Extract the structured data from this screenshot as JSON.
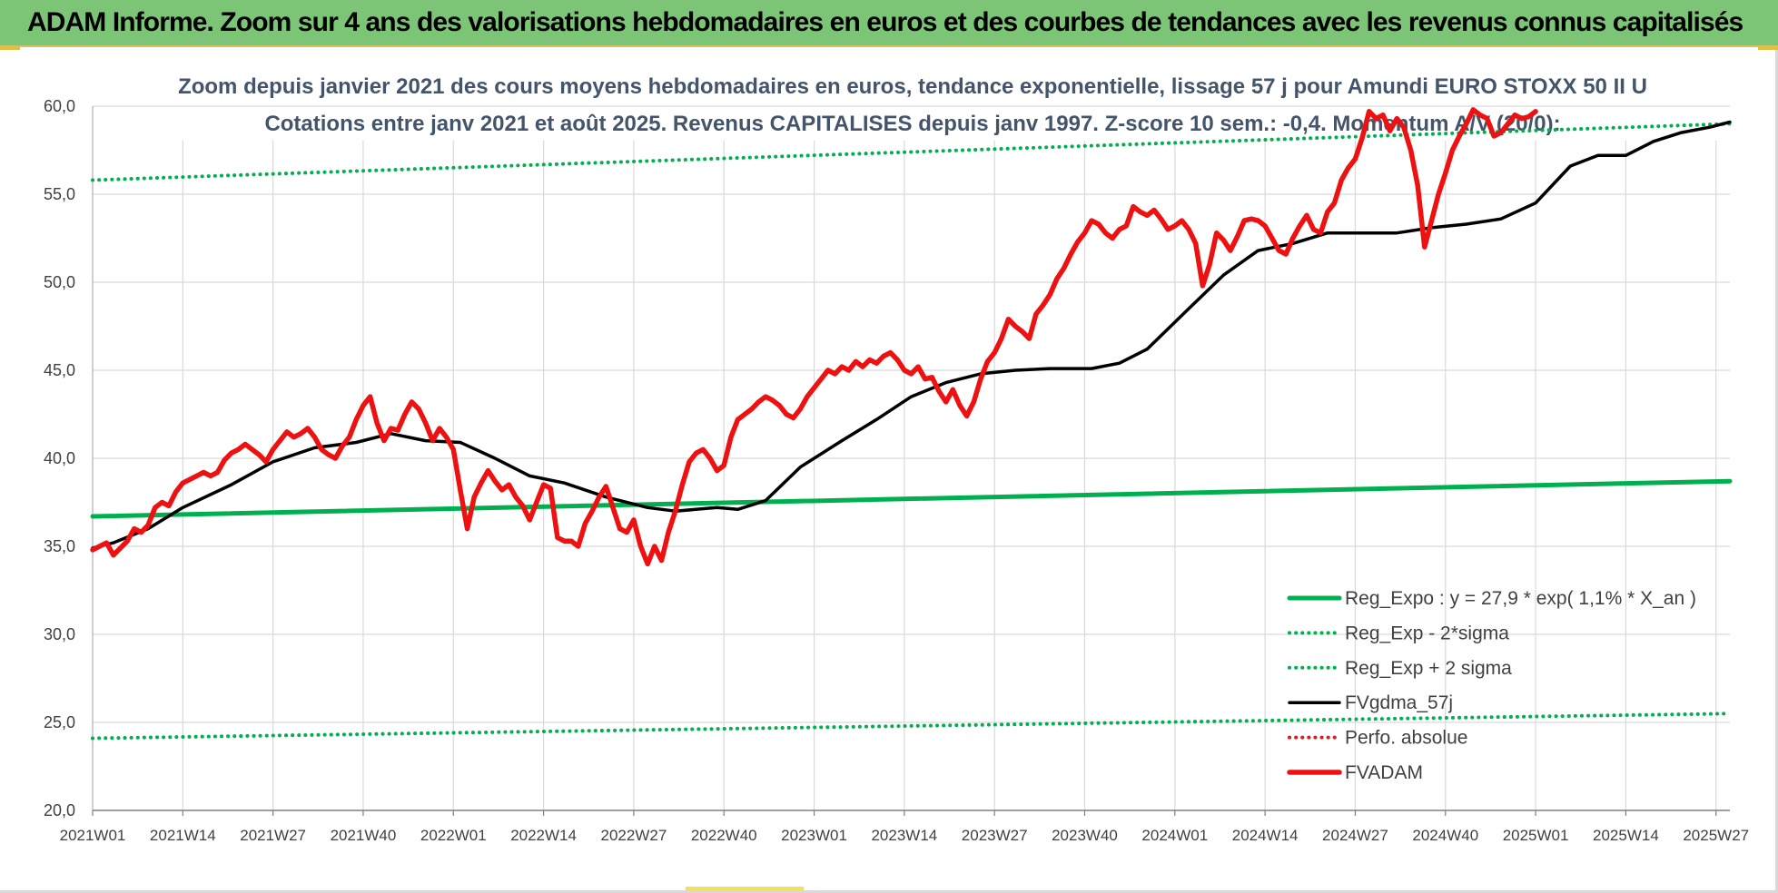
{
  "header": {
    "banner_title": "ADAM Informe. Zoom sur 4 ans des valorisations hebdomadaires en euros et des courbes de tendances avec les revenus connus capitalisés"
  },
  "chart_data": {
    "type": "line",
    "title_line1": "Zoom depuis janvier 2021 des cours moyens hebdomadaires en euros, tendance exponentielle, lissage 57 j pour Amundi EURO STOXX 50 II U",
    "title_line2": "Cotations entre janv 2021 et août 2025. Revenus CAPITALISES depuis janv 1997. Z-score 10 sem.: -0,4. Momentum A/V (20/0):",
    "ylim": [
      20,
      60
    ],
    "yticks": [
      "20,0",
      "25,0",
      "30,0",
      "35,0",
      "40,0",
      "45,0",
      "50,0",
      "55,0",
      "60,0"
    ],
    "x_count": 237,
    "xticks": [
      {
        "index": 0,
        "label": "2021W01"
      },
      {
        "index": 13,
        "label": "2021W14"
      },
      {
        "index": 26,
        "label": "2021W27"
      },
      {
        "index": 39,
        "label": "2021W40"
      },
      {
        "index": 52,
        "label": "2022W01"
      },
      {
        "index": 65,
        "label": "2022W14"
      },
      {
        "index": 78,
        "label": "2022W27"
      },
      {
        "index": 91,
        "label": "2022W40"
      },
      {
        "index": 104,
        "label": "2023W01"
      },
      {
        "index": 117,
        "label": "2023W14"
      },
      {
        "index": 130,
        "label": "2023W27"
      },
      {
        "index": 143,
        "label": "2023W40"
      },
      {
        "index": 156,
        "label": "2024W01"
      },
      {
        "index": 169,
        "label": "2024W14"
      },
      {
        "index": 182,
        "label": "2024W27"
      },
      {
        "index": 195,
        "label": "2024W40"
      },
      {
        "index": 208,
        "label": "2025W01"
      },
      {
        "index": 221,
        "label": "2025W14"
      },
      {
        "index": 234,
        "label": "2025W27"
      }
    ],
    "grid": true,
    "legend_placement": "lower-right",
    "series": [
      {
        "name": "Reg_Expo : y = 27,9 * exp( 1,1% *  X_an )",
        "color": "#00b050",
        "style": "solid",
        "width": 5,
        "points": [
          [
            0,
            36.7
          ],
          [
            236,
            38.7
          ]
        ]
      },
      {
        "name": "Reg_Exp - 2*sigma",
        "color": "#00b050",
        "style": "dotted",
        "width": 4,
        "points": [
          [
            0,
            24.1
          ],
          [
            236,
            25.5
          ]
        ]
      },
      {
        "name": "Reg_Exp + 2 sigma",
        "color": "#00b050",
        "style": "dotted",
        "width": 4,
        "points": [
          [
            0,
            55.8
          ],
          [
            236,
            59.0
          ]
        ]
      },
      {
        "name": "FVgdma_57j",
        "color": "#000000",
        "style": "solid",
        "width": 3.5,
        "points": [
          [
            0,
            34.9
          ],
          [
            3,
            35.2
          ],
          [
            8,
            36.0
          ],
          [
            13,
            37.2
          ],
          [
            20,
            38.5
          ],
          [
            26,
            39.8
          ],
          [
            32,
            40.6
          ],
          [
            38,
            40.9
          ],
          [
            43,
            41.4
          ],
          [
            48,
            41.0
          ],
          [
            53,
            40.9
          ],
          [
            58,
            40.0
          ],
          [
            63,
            39.0
          ],
          [
            68,
            38.6
          ],
          [
            74,
            37.8
          ],
          [
            80,
            37.2
          ],
          [
            84,
            37.0
          ],
          [
            90,
            37.2
          ],
          [
            93,
            37.1
          ],
          [
            97,
            37.6
          ],
          [
            102,
            39.5
          ],
          [
            108,
            41.0
          ],
          [
            113,
            42.2
          ],
          [
            118,
            43.5
          ],
          [
            123,
            44.3
          ],
          [
            128,
            44.8
          ],
          [
            133,
            45.0
          ],
          [
            138,
            45.1
          ],
          [
            144,
            45.1
          ],
          [
            148,
            45.4
          ],
          [
            152,
            46.2
          ],
          [
            158,
            48.5
          ],
          [
            163,
            50.4
          ],
          [
            168,
            51.8
          ],
          [
            173,
            52.2
          ],
          [
            178,
            52.8
          ],
          [
            183,
            52.8
          ],
          [
            188,
            52.8
          ],
          [
            193,
            53.1
          ],
          [
            198,
            53.3
          ],
          [
            203,
            53.6
          ],
          [
            208,
            54.5
          ],
          [
            213,
            56.6
          ],
          [
            217,
            57.2
          ],
          [
            221,
            57.2
          ],
          [
            225,
            58.0
          ],
          [
            229,
            58.5
          ],
          [
            233,
            58.8
          ],
          [
            236,
            59.1
          ]
        ]
      },
      {
        "name": "Perfo. absolue",
        "color": "#e31a1c",
        "style": "dotted",
        "width": 3,
        "points": []
      },
      {
        "name": "FVADAM",
        "color": "#ee1111",
        "style": "solid",
        "width": 5.5,
        "points": [
          [
            0,
            34.8
          ],
          [
            2,
            35.2
          ],
          [
            3,
            34.5
          ],
          [
            5,
            35.3
          ],
          [
            6,
            36.0
          ],
          [
            7,
            35.8
          ],
          [
            8,
            36.2
          ],
          [
            9,
            37.2
          ],
          [
            10,
            37.5
          ],
          [
            11,
            37.3
          ],
          [
            12,
            38.1
          ],
          [
            13,
            38.6
          ],
          [
            14,
            38.8
          ],
          [
            15,
            39.0
          ],
          [
            16,
            39.2
          ],
          [
            17,
            39.0
          ],
          [
            18,
            39.2
          ],
          [
            19,
            39.9
          ],
          [
            20,
            40.3
          ],
          [
            21,
            40.5
          ],
          [
            22,
            40.8
          ],
          [
            23,
            40.5
          ],
          [
            24,
            40.2
          ],
          [
            25,
            39.8
          ],
          [
            26,
            40.5
          ],
          [
            27,
            41.0
          ],
          [
            28,
            41.5
          ],
          [
            29,
            41.2
          ],
          [
            30,
            41.4
          ],
          [
            31,
            41.7
          ],
          [
            32,
            41.2
          ],
          [
            33,
            40.5
          ],
          [
            34,
            40.2
          ],
          [
            35,
            40.0
          ],
          [
            36,
            40.7
          ],
          [
            37,
            41.2
          ],
          [
            38,
            42.2
          ],
          [
            39,
            43.0
          ],
          [
            40,
            43.5
          ],
          [
            41,
            42.0
          ],
          [
            42,
            41.0
          ],
          [
            43,
            41.7
          ],
          [
            44,
            41.6
          ],
          [
            45,
            42.5
          ],
          [
            46,
            43.2
          ],
          [
            47,
            42.8
          ],
          [
            48,
            42.0
          ],
          [
            49,
            41.0
          ],
          [
            50,
            41.7
          ],
          [
            51,
            41.2
          ],
          [
            52,
            40.5
          ],
          [
            53,
            38.2
          ],
          [
            54,
            36.0
          ],
          [
            55,
            37.8
          ],
          [
            56,
            38.6
          ],
          [
            57,
            39.3
          ],
          [
            58,
            38.7
          ],
          [
            59,
            38.2
          ],
          [
            60,
            38.5
          ],
          [
            61,
            37.8
          ],
          [
            62,
            37.3
          ],
          [
            63,
            36.5
          ],
          [
            64,
            37.5
          ],
          [
            65,
            38.5
          ],
          [
            66,
            38.3
          ],
          [
            67,
            35.5
          ],
          [
            68,
            35.3
          ],
          [
            69,
            35.3
          ],
          [
            70,
            35.0
          ],
          [
            71,
            36.3
          ],
          [
            72,
            37.0
          ],
          [
            73,
            37.8
          ],
          [
            74,
            38.4
          ],
          [
            75,
            37.2
          ],
          [
            76,
            36.0
          ],
          [
            77,
            35.8
          ],
          [
            78,
            36.5
          ],
          [
            79,
            35.0
          ],
          [
            80,
            34.0
          ],
          [
            81,
            35.0
          ],
          [
            82,
            34.2
          ],
          [
            83,
            35.8
          ],
          [
            84,
            37.0
          ],
          [
            85,
            38.5
          ],
          [
            86,
            39.8
          ],
          [
            87,
            40.3
          ],
          [
            88,
            40.5
          ],
          [
            89,
            40.0
          ],
          [
            90,
            39.3
          ],
          [
            91,
            39.6
          ],
          [
            92,
            41.2
          ],
          [
            93,
            42.2
          ],
          [
            94,
            42.5
          ],
          [
            95,
            42.8
          ],
          [
            96,
            43.2
          ],
          [
            97,
            43.5
          ],
          [
            98,
            43.3
          ],
          [
            99,
            43.0
          ],
          [
            100,
            42.5
          ],
          [
            101,
            42.3
          ],
          [
            102,
            42.8
          ],
          [
            103,
            43.5
          ],
          [
            104,
            44.0
          ],
          [
            105,
            44.5
          ],
          [
            106,
            45.0
          ],
          [
            107,
            44.8
          ],
          [
            108,
            45.2
          ],
          [
            109,
            45.0
          ],
          [
            110,
            45.5
          ],
          [
            111,
            45.2
          ],
          [
            112,
            45.6
          ],
          [
            113,
            45.4
          ],
          [
            114,
            45.8
          ],
          [
            115,
            46.0
          ],
          [
            116,
            45.6
          ],
          [
            117,
            45.0
          ],
          [
            118,
            44.8
          ],
          [
            119,
            45.2
          ],
          [
            120,
            44.5
          ],
          [
            121,
            44.6
          ],
          [
            122,
            43.8
          ],
          [
            123,
            43.2
          ],
          [
            124,
            43.9
          ],
          [
            125,
            43.0
          ],
          [
            126,
            42.4
          ],
          [
            127,
            43.2
          ],
          [
            128,
            44.5
          ],
          [
            129,
            45.5
          ],
          [
            130,
            46.0
          ],
          [
            131,
            46.8
          ],
          [
            132,
            47.9
          ],
          [
            133,
            47.5
          ],
          [
            134,
            47.2
          ],
          [
            135,
            46.8
          ],
          [
            136,
            48.2
          ],
          [
            137,
            48.7
          ],
          [
            138,
            49.3
          ],
          [
            139,
            50.2
          ],
          [
            140,
            50.8
          ],
          [
            141,
            51.6
          ],
          [
            142,
            52.3
          ],
          [
            143,
            52.8
          ],
          [
            144,
            53.5
          ],
          [
            145,
            53.3
          ],
          [
            146,
            52.8
          ],
          [
            147,
            52.5
          ],
          [
            148,
            53.0
          ],
          [
            149,
            53.2
          ],
          [
            150,
            54.3
          ],
          [
            151,
            54.0
          ],
          [
            152,
            53.8
          ],
          [
            153,
            54.1
          ],
          [
            154,
            53.6
          ],
          [
            155,
            53.0
          ],
          [
            156,
            53.2
          ],
          [
            157,
            53.5
          ],
          [
            158,
            53.0
          ],
          [
            159,
            52.2
          ],
          [
            160,
            49.8
          ],
          [
            161,
            51.0
          ],
          [
            162,
            52.8
          ],
          [
            163,
            52.4
          ],
          [
            164,
            51.8
          ],
          [
            165,
            52.6
          ],
          [
            166,
            53.5
          ],
          [
            167,
            53.6
          ],
          [
            168,
            53.5
          ],
          [
            169,
            53.2
          ],
          [
            170,
            52.5
          ],
          [
            171,
            51.8
          ],
          [
            172,
            51.6
          ],
          [
            173,
            52.5
          ],
          [
            174,
            53.2
          ],
          [
            175,
            53.8
          ],
          [
            176,
            53.0
          ],
          [
            177,
            52.8
          ],
          [
            178,
            54.0
          ],
          [
            179,
            54.5
          ],
          [
            180,
            55.8
          ],
          [
            181,
            56.5
          ],
          [
            182,
            57.0
          ],
          [
            183,
            58.2
          ],
          [
            184,
            59.7
          ],
          [
            185,
            59.3
          ],
          [
            186,
            59.5
          ],
          [
            187,
            58.6
          ],
          [
            188,
            59.3
          ],
          [
            189,
            58.8
          ],
          [
            190,
            57.5
          ],
          [
            191,
            55.5
          ],
          [
            192,
            52.0
          ],
          [
            193,
            53.5
          ],
          [
            194,
            55.0
          ],
          [
            195,
            56.2
          ],
          [
            196,
            57.5
          ],
          [
            197,
            58.3
          ],
          [
            198,
            59.0
          ],
          [
            199,
            59.8
          ],
          [
            200,
            59.5
          ],
          [
            201,
            59.3
          ],
          [
            202,
            58.3
          ],
          [
            203,
            58.5
          ],
          [
            204,
            59.0
          ],
          [
            205,
            59.5
          ],
          [
            206,
            59.3
          ],
          [
            207,
            59.4
          ],
          [
            208,
            59.7
          ]
        ]
      }
    ]
  }
}
